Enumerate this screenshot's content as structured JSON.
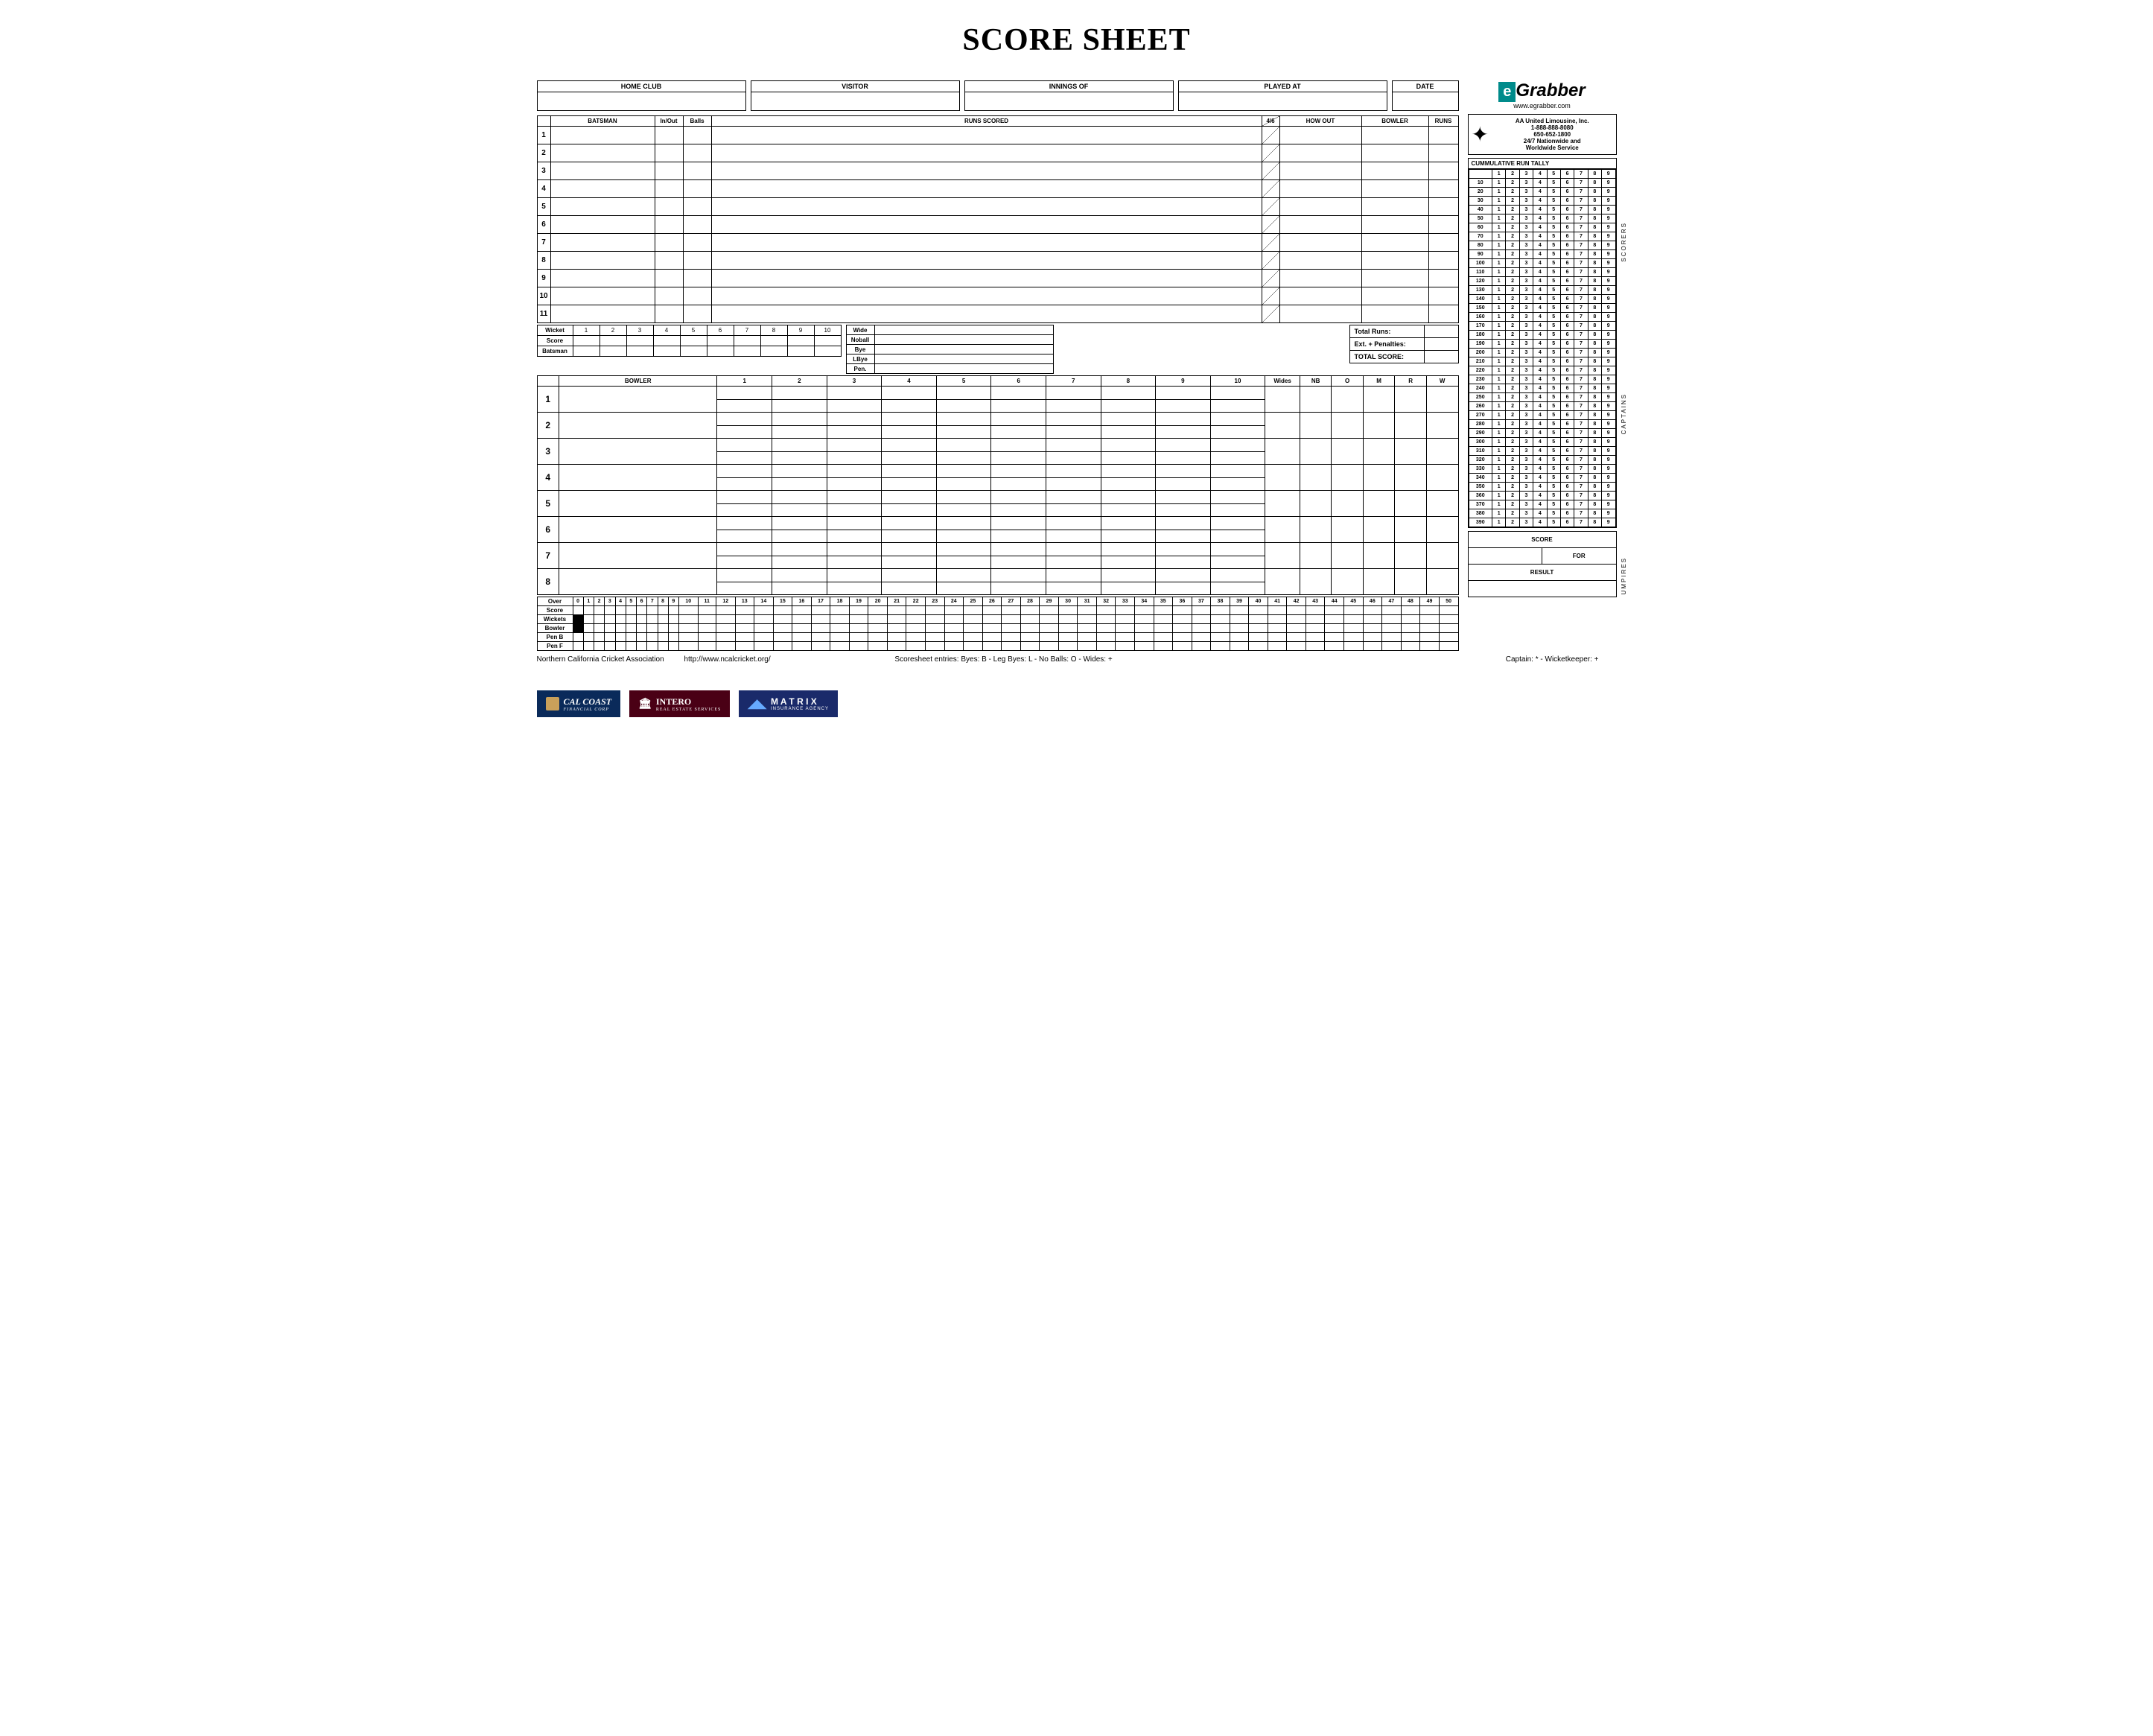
{
  "title": "SCORE SHEET",
  "header_boxes": [
    "HOME CLUB",
    "VISITOR",
    "INNINGS OF",
    "PLAYED AT",
    "DATE"
  ],
  "batting_headers": [
    "BATSMAN",
    "In/Out",
    "Balls",
    "RUNS SCORED",
    "4/6",
    "HOW OUT",
    "BOWLER",
    "RUNS"
  ],
  "batsmen_count": 11,
  "wicket_row": {
    "label": "Wicket",
    "cols": [
      "1",
      "2",
      "3",
      "4",
      "5",
      "6",
      "7",
      "8",
      "9",
      "10"
    ]
  },
  "score_row_label": "Score",
  "batsman_row_label": "Batsman",
  "extras": [
    "Wide",
    "Noball",
    "Bye",
    "LBye",
    "Pen."
  ],
  "totals": [
    "Total Runs:",
    "Ext. + Penalties:",
    "TOTAL SCORE:"
  ],
  "bowling_headers": {
    "bowler": "BOWLER",
    "overs": [
      "1",
      "2",
      "3",
      "4",
      "5",
      "6",
      "7",
      "8",
      "9",
      "10"
    ],
    "wides": "Wides",
    "nb": "NB",
    "o": "O",
    "m": "M",
    "r": "R",
    "w": "W"
  },
  "bowlers_count": 8,
  "over_grid": {
    "over_label": "Over",
    "overs": [
      "0",
      "1",
      "2",
      "3",
      "4",
      "5",
      "6",
      "7",
      "8",
      "9",
      "10",
      "11",
      "12",
      "13",
      "14",
      "15",
      "16",
      "17",
      "18",
      "19",
      "20",
      "21",
      "22",
      "23",
      "24",
      "25",
      "26",
      "27",
      "28",
      "29",
      "30",
      "31",
      "32",
      "33",
      "34",
      "35",
      "36",
      "37",
      "38",
      "39",
      "40",
      "41",
      "42",
      "43",
      "44",
      "45",
      "46",
      "47",
      "48",
      "49",
      "50"
    ],
    "rows": [
      "Score",
      "Wickets",
      "Bowler",
      "Pen B",
      "Pen F"
    ]
  },
  "footer": {
    "assoc": "Northern California Cricket Association",
    "url": "http://www.ncalcricket.org/",
    "legend": "Scoresheet entries:   Byes: B       -  Leg Byes: L       -   No Balls: O  -  Wides: +",
    "caption": "Captain: *  -  Wicketkeeper: +"
  },
  "egrabber": {
    "url": "www.egrabber.com"
  },
  "ad": {
    "name": "AA United Limousine, Inc.",
    "ph1": "1-888-888-8080",
    "ph2": "650-652-1800",
    "l1": "24/7 Nationwide and",
    "l2": "Worldwide Service"
  },
  "tally": {
    "title": "CUMMULATIVE RUN TALLY",
    "cols": [
      "1",
      "2",
      "3",
      "4",
      "5",
      "6",
      "7",
      "8",
      "9"
    ],
    "rows": [
      "10",
      "20",
      "30",
      "40",
      "50",
      "60",
      "70",
      "80",
      "90",
      "100",
      "110",
      "120",
      "130",
      "140",
      "150",
      "160",
      "170",
      "180",
      "190",
      "200",
      "210",
      "220",
      "230",
      "240",
      "250",
      "260",
      "270",
      "280",
      "290",
      "300",
      "310",
      "320",
      "330",
      "340",
      "350",
      "360",
      "370",
      "380",
      "390"
    ]
  },
  "score_box": [
    "SCORE",
    "FOR",
    "RESULT"
  ],
  "side_labels": [
    "SCORERS",
    "CAPTAINS",
    "UMPIRES"
  ],
  "sponsors": [
    {
      "name": "CAL COAST",
      "sub": "FINANCIAL CORP",
      "bg": "#0a2a5a"
    },
    {
      "name": "INTERO",
      "sub": "REAL ESTATE SERVICES",
      "bg": "#4a0015"
    },
    {
      "name": "M A T R I X",
      "sub": "INSURANCE AGENCY",
      "bg": "#1a2a6a"
    }
  ],
  "colors": {
    "black": "#000",
    "white": "#fff",
    "teal": "#008b8b"
  }
}
